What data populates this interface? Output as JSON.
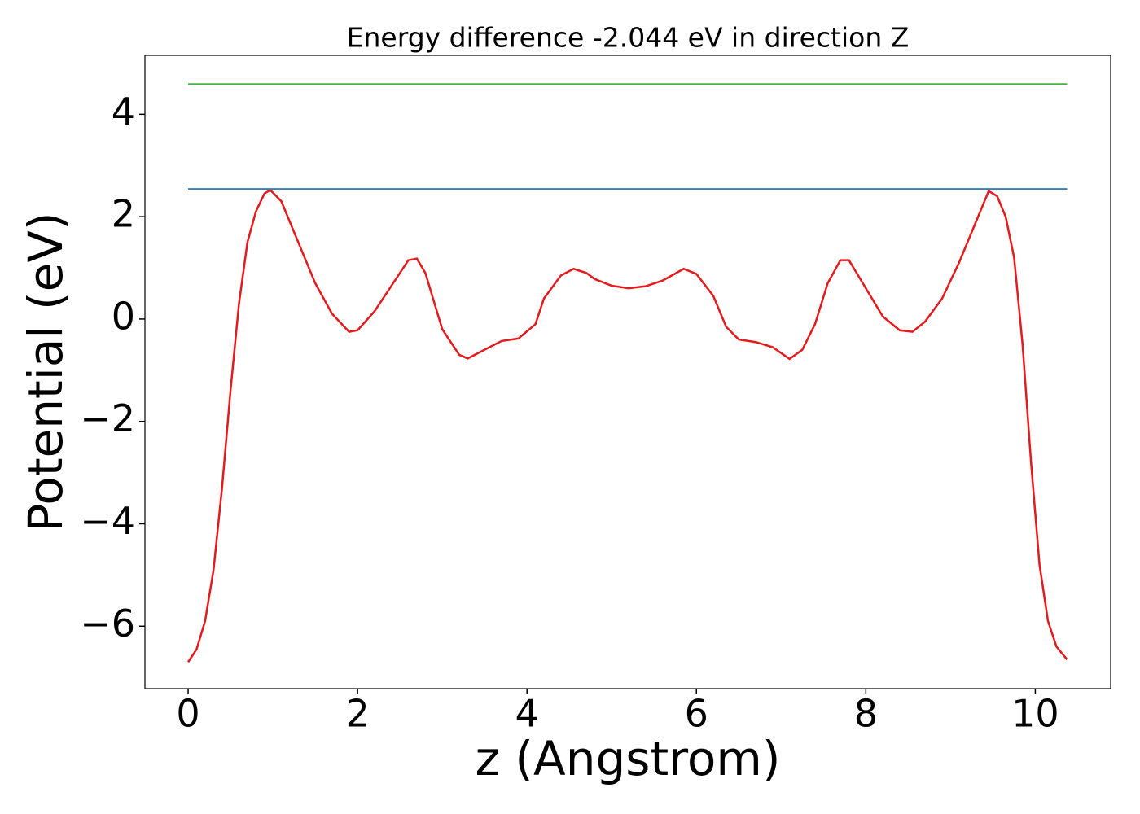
{
  "chart_data": {
    "type": "line",
    "title": "Energy difference -2.044 eV in direction Z",
    "xlabel": "z (Angstrom)",
    "ylabel": "Potential (eV)",
    "xlim": [
      -0.51,
      10.89
    ],
    "ylim": [
      -7.22,
      5.15
    ],
    "xticks": [
      0,
      2,
      4,
      6,
      8,
      10
    ],
    "yticks": [
      {
        "value": -6,
        "label": "−6"
      },
      {
        "value": -4,
        "label": "−4"
      },
      {
        "value": -2,
        "label": "−2"
      },
      0,
      2,
      4
    ],
    "grid": false,
    "series": [
      {
        "color": "#e41a1c",
        "x": [
          0,
          0.1,
          0.2,
          0.3,
          0.4,
          0.5,
          0.6,
          0.7,
          0.8,
          0.9,
          0.97,
          1.1,
          1.3,
          1.5,
          1.7,
          1.9,
          2.0,
          2.2,
          2.4,
          2.6,
          2.7,
          2.8,
          3.0,
          3.2,
          3.3,
          3.5,
          3.7,
          3.9,
          4.1,
          4.2,
          4.4,
          4.55,
          4.7,
          4.8,
          5.0,
          5.2,
          5.4,
          5.6,
          5.85,
          6.0,
          6.2,
          6.35,
          6.5,
          6.7,
          6.9,
          7.1,
          7.25,
          7.4,
          7.55,
          7.7,
          7.8,
          8.0,
          8.2,
          8.4,
          8.55,
          8.7,
          8.9,
          9.1,
          9.3,
          9.45,
          9.55,
          9.65,
          9.75,
          9.85,
          9.95,
          10.05,
          10.15,
          10.25,
          10.375
        ],
        "values": [
          -6.7,
          -6.45,
          -5.9,
          -4.9,
          -3.3,
          -1.4,
          0.3,
          1.5,
          2.1,
          2.45,
          2.52,
          2.3,
          1.5,
          0.7,
          0.1,
          -0.25,
          -0.22,
          0.15,
          0.65,
          1.15,
          1.18,
          0.9,
          -0.2,
          -0.7,
          -0.77,
          -0.6,
          -0.43,
          -0.38,
          -0.1,
          0.4,
          0.85,
          0.98,
          0.9,
          0.78,
          0.65,
          0.6,
          0.64,
          0.75,
          0.98,
          0.88,
          0.45,
          -0.15,
          -0.4,
          -0.45,
          -0.55,
          -0.78,
          -0.6,
          -0.1,
          0.7,
          1.15,
          1.15,
          0.6,
          0.05,
          -0.22,
          -0.25,
          -0.05,
          0.4,
          1.1,
          1.9,
          2.5,
          2.4,
          2.0,
          1.2,
          -0.5,
          -2.8,
          -4.8,
          -5.9,
          -6.4,
          -6.65
        ]
      },
      {
        "color": "#377eb8",
        "x": [
          0,
          10.375
        ],
        "values": [
          2.54,
          2.54
        ]
      },
      {
        "color": "#4daf4a",
        "x": [
          0,
          10.375
        ],
        "values": [
          4.59,
          4.59
        ]
      }
    ]
  }
}
